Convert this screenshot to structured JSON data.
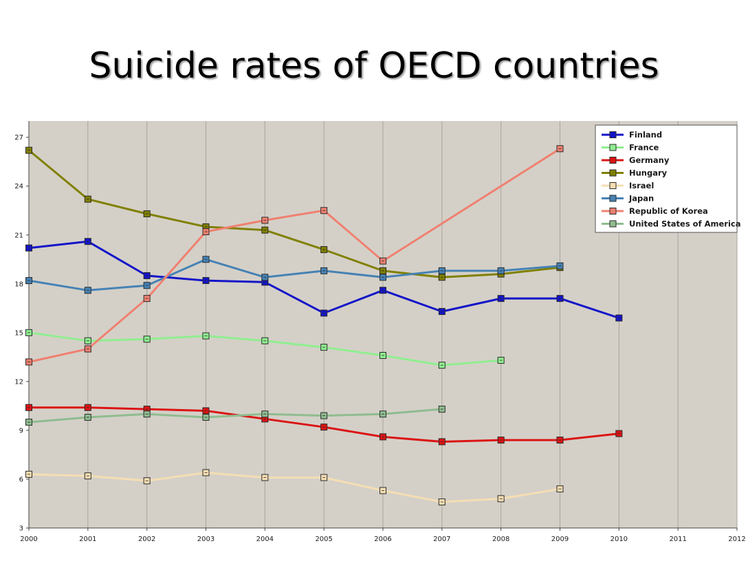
{
  "title": "Suicide rates of OECD countries",
  "chart_data": {
    "type": "line",
    "title": "Suicide rates of OECD countries",
    "xlabel": "",
    "ylabel": "",
    "x": [
      2000,
      2001,
      2002,
      2003,
      2004,
      2005,
      2006,
      2007,
      2008,
      2009,
      2010,
      2011,
      2012
    ],
    "xlim": [
      2000,
      2012
    ],
    "ylim": [
      3,
      28
    ],
    "yticks": [
      3,
      6,
      9,
      12,
      15,
      18,
      21,
      24,
      27
    ],
    "grid": "vertical",
    "legend_position": "top-right",
    "plot_background": "#d4d0c8",
    "series": [
      {
        "name": "Finland",
        "color": "#1414c8",
        "x": [
          2000,
          2001,
          2002,
          2003,
          2004,
          2005,
          2006,
          2007,
          2008,
          2009,
          2010
        ],
        "values": [
          20.2,
          20.6,
          18.5,
          18.2,
          18.1,
          16.2,
          17.6,
          16.3,
          17.1,
          17.1,
          15.9
        ]
      },
      {
        "name": "France",
        "color": "#90ee90",
        "x": [
          2000,
          2001,
          2002,
          2003,
          2004,
          2005,
          2006,
          2007,
          2008
        ],
        "values": [
          15.0,
          14.5,
          14.6,
          14.8,
          14.5,
          14.1,
          13.6,
          13.0,
          13.3
        ]
      },
      {
        "name": "Germany",
        "color": "#dc1414",
        "x": [
          2000,
          2001,
          2002,
          2003,
          2004,
          2005,
          2006,
          2007,
          2008,
          2009,
          2010
        ],
        "values": [
          10.4,
          10.4,
          10.3,
          10.2,
          9.7,
          9.2,
          8.6,
          8.3,
          8.4,
          8.4,
          8.8
        ]
      },
      {
        "name": "Hungary",
        "color": "#808000",
        "x": [
          2000,
          2001,
          2002,
          2003,
          2004,
          2005,
          2006,
          2007,
          2008,
          2009
        ],
        "values": [
          26.2,
          23.2,
          22.3,
          21.5,
          21.3,
          20.1,
          18.8,
          18.4,
          18.6,
          19.0
        ]
      },
      {
        "name": "Israel",
        "color": "#f5deb3",
        "x": [
          2000,
          2001,
          2002,
          2003,
          2004,
          2005,
          2006,
          2007,
          2008,
          2009
        ],
        "values": [
          6.3,
          6.2,
          5.9,
          6.4,
          6.1,
          6.1,
          5.3,
          4.6,
          4.8,
          5.4
        ]
      },
      {
        "name": "Japan",
        "color": "#4682b4",
        "x": [
          2000,
          2001,
          2002,
          2003,
          2004,
          2005,
          2006,
          2007,
          2008,
          2009
        ],
        "values": [
          18.2,
          17.6,
          17.9,
          19.5,
          18.4,
          18.8,
          18.4,
          18.8,
          18.8,
          19.1
        ]
      },
      {
        "name": "Republic of Korea",
        "color": "#f08070",
        "x": [
          2000,
          2001,
          2002,
          2003,
          2004,
          2005,
          2006,
          2009
        ],
        "values": [
          13.2,
          14.0,
          17.1,
          21.2,
          21.9,
          22.5,
          19.4,
          26.3
        ]
      },
      {
        "name": "United States of America",
        "color": "#8fbc8f",
        "x": [
          2000,
          2001,
          2002,
          2003,
          2004,
          2005,
          2006,
          2007
        ],
        "values": [
          9.5,
          9.8,
          10.0,
          9.8,
          10.0,
          9.9,
          10.0,
          10.3
        ]
      }
    ]
  }
}
